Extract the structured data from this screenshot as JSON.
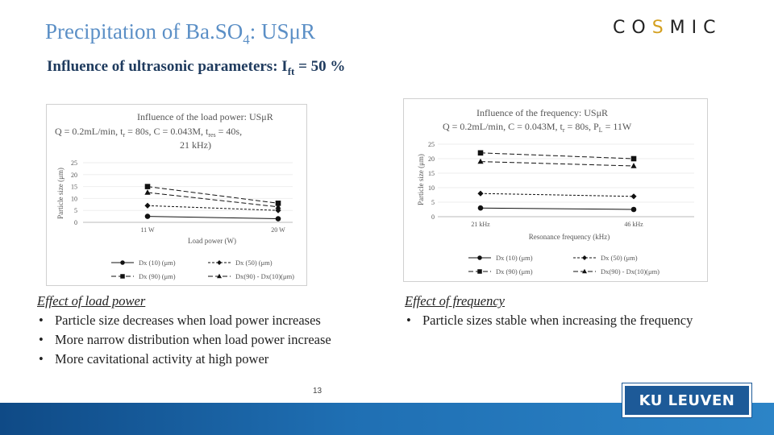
{
  "slide": {
    "title_main": "Precipitation of Ba.SO",
    "title_sub": "4",
    "title_end": ": USμR",
    "subtitle_main": "Influence of ultrasonic parameters: I",
    "subtitle_sub": "ft",
    "subtitle_end": " = 50 %",
    "logo_text_a": "CO",
    "logo_text_s": "S",
    "logo_text_b": "MIC",
    "page_number": "13",
    "university_badge": "KU LEUVEN",
    "left_effect": {
      "heading": "Effect of load power",
      "bullets": [
        "Particle size decreases when load power increases",
        "More narrow distribution when load power increase",
        "More cavitational activity at high power"
      ]
    },
    "right_effect": {
      "heading": "Effect of frequency",
      "bullets": [
        "Particle sizes stable when increasing the frequency"
      ]
    },
    "colors": {
      "title": "#5b8fc6",
      "subtitle": "#1f3b5e",
      "footer": "#1f6fb3",
      "badge": "#1d5a98",
      "logo_accent": "#d4a020"
    }
  },
  "chart_data": [
    {
      "type": "line",
      "title_lines": [
        "Influence of the load power: USμR",
        "Q = 0.2mL/min, t",
        "21 kHz)"
      ],
      "title_line2_rest": ", C = 0.043M, t",
      "title_line2_end": " = 40s,",
      "title_sub_r": "r",
      "title_mid": " = 80s",
      "title_sub_res": "res",
      "xlabel": "Load power (W)",
      "ylabel": "Particle size (μm)",
      "categories": [
        "11 W",
        "20 W"
      ],
      "yticks": [
        "0",
        "5",
        "10",
        "15",
        "20",
        "25"
      ],
      "ylim": [
        0,
        25
      ],
      "series": [
        {
          "name": "Dx (10) (μm)",
          "values": [
            2.5,
            1.5
          ],
          "marker": "circle",
          "dash": "solid"
        },
        {
          "name": "Dx (50) (μm)",
          "values": [
            7,
            5
          ],
          "marker": "diamond",
          "dash": "short"
        },
        {
          "name": "Dx (90) (μm)",
          "values": [
            15,
            8
          ],
          "marker": "square",
          "dash": "long"
        },
        {
          "name": "Dx(90) - Dx(10)(μm)",
          "values": [
            12.5,
            6.5
          ],
          "marker": "triangle",
          "dash": "long"
        }
      ]
    },
    {
      "type": "line",
      "title_lines": [
        "Influence of the frequency: USμR",
        "Q = 0.2mL/min, C = 0.043M, t",
        "",
        "W"
      ],
      "title_mid_r": "r",
      "title_mid_rest": " = 80s, P",
      "title_sub_L": "L",
      "title_end": " = 11W",
      "xlabel": "Resonance frequency (kHz)",
      "ylabel": "Particle size (μm)",
      "categories": [
        "21 kHz",
        "46 kHz"
      ],
      "yticks": [
        "0",
        "5",
        "10",
        "15",
        "20",
        "25"
      ],
      "ylim": [
        0,
        25
      ],
      "series": [
        {
          "name": "Dx (10) (μm)",
          "values": [
            3,
            2.5
          ],
          "marker": "circle",
          "dash": "solid"
        },
        {
          "name": "Dx (50) (μm)",
          "values": [
            8,
            7
          ],
          "marker": "diamond",
          "dash": "short"
        },
        {
          "name": "Dx (90) (μm)",
          "values": [
            22,
            20
          ],
          "marker": "square",
          "dash": "long"
        },
        {
          "name": "Dx(90) - Dx(10)(μm)",
          "values": [
            19,
            17.5
          ],
          "marker": "triangle",
          "dash": "long"
        }
      ]
    }
  ]
}
